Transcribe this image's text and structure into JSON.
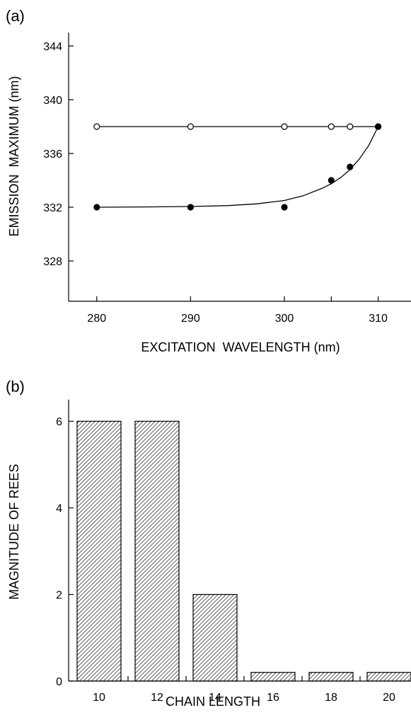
{
  "chart_data": [
    {
      "panel_label": "(a)",
      "type": "scatter",
      "xlabel": "EXCITATION  WAVELENGTH (nm)",
      "ylabel": "EMISSION  MAXIMUM (nm)",
      "xlim": [
        277,
        313.5
      ],
      "ylim": [
        325,
        345
      ],
      "xticks": [
        280,
        290,
        300,
        305,
        310
      ],
      "xtick_labels": [
        "280",
        "290",
        "300",
        "",
        "310"
      ],
      "yticks": [
        328,
        332,
        336,
        340,
        344
      ],
      "ytick_labels": [
        "328",
        "332",
        "336",
        "340",
        "344"
      ],
      "grid": false,
      "series": [
        {
          "marker": "open-circle",
          "x": [
            280,
            290,
            300,
            305,
            307,
            310
          ],
          "y": [
            338,
            338,
            338,
            338,
            338,
            338
          ],
          "fit_curve": {
            "x": [
              280,
              310
            ],
            "y": [
              338,
              338
            ]
          }
        },
        {
          "marker": "filled-circle",
          "x": [
            280,
            290,
            300,
            305,
            307,
            310
          ],
          "y": [
            332,
            332,
            332,
            334,
            335,
            338
          ],
          "fit_curve": {
            "x": [
              280,
              285,
              290,
              294,
              297,
              300,
              302,
              304,
              305,
              306,
              307,
              308,
              309,
              310
            ],
            "y": [
              332,
              332.02,
              332.05,
              332.12,
              332.25,
              332.5,
              332.85,
              333.4,
              333.75,
              334.2,
              334.8,
              335.6,
              336.6,
              338
            ]
          }
        }
      ]
    },
    {
      "panel_label": "(b)",
      "type": "bar",
      "xlabel": "CHAIN LENGTH",
      "ylabel": "MAGNITUDE OF REES",
      "categories": [
        "10",
        "12",
        "14",
        "16",
        "18",
        "20"
      ],
      "values": [
        6,
        6,
        2,
        0.2,
        0.2,
        0.2
      ],
      "ylim": [
        0,
        6.5
      ],
      "yticks": [
        0,
        2,
        4,
        6
      ],
      "ytick_labels": [
        "0",
        "2",
        "4",
        "6"
      ],
      "bar_fill": "hatched",
      "grid": false
    }
  ]
}
